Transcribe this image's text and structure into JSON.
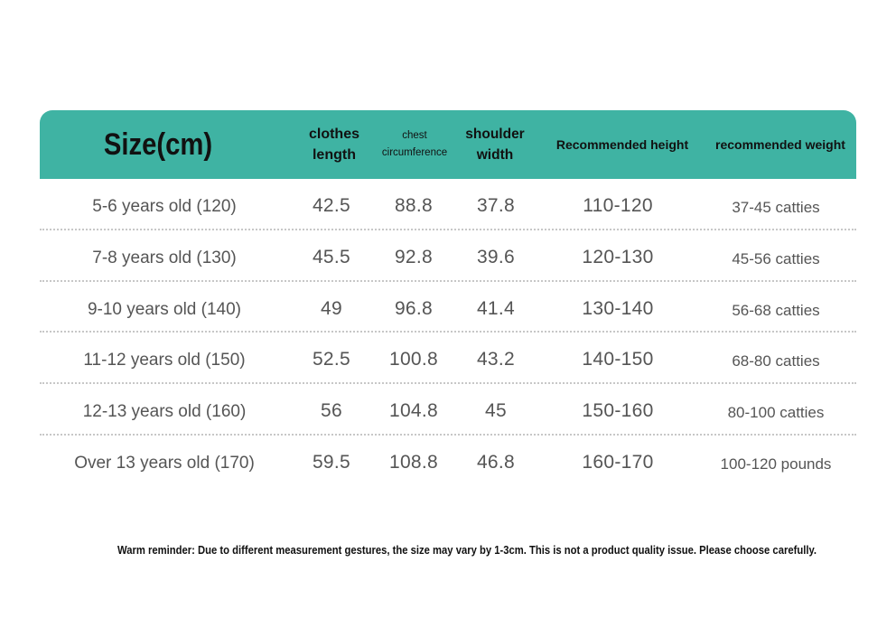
{
  "header": {
    "size_label": "Size(cm)",
    "length_label_line1": "clothes",
    "length_label_line2": "length",
    "chest_label_line1": "chest",
    "chest_label_line2": "circumference",
    "shoulder_label_line1": "shoulder",
    "shoulder_label_line2": "width",
    "height_label": "Recommended height",
    "weight_label": "recommended weight"
  },
  "rows": [
    {
      "size": "5-6 years old (120)",
      "length": "42.5",
      "chest": "88.8",
      "shoulder": "37.8",
      "height": "110-120",
      "weight": "37-45 catties"
    },
    {
      "size": "7-8 years old (130)",
      "length": "45.5",
      "chest": "92.8",
      "shoulder": "39.6",
      "height": "120-130",
      "weight": "45-56 catties"
    },
    {
      "size": "9-10 years old (140)",
      "length": "49",
      "chest": "96.8",
      "shoulder": "41.4",
      "height": "130-140",
      "weight": "56-68 catties"
    },
    {
      "size": "11-12 years old (150)",
      "length": "52.5",
      "chest": "100.8",
      "shoulder": "43.2",
      "height": "140-150",
      "weight": "68-80 catties"
    },
    {
      "size": "12-13 years old (160)",
      "length": "56",
      "chest": "104.8",
      "shoulder": "45",
      "height": "150-160",
      "weight": "80-100 catties"
    },
    {
      "size": "Over 13 years old (170)",
      "length": "59.5",
      "chest": "108.8",
      "shoulder": "46.8",
      "height": "160-170",
      "weight": "100-120 pounds"
    }
  ],
  "reminder": "Warm reminder: Due to different measurement gestures, the size may vary by 1-3cm. This is not a product quality issue. Please choose carefully.",
  "colors": {
    "header_bg": "#3fb3a3",
    "header_text": "#111111",
    "body_text": "#555555",
    "divider": "#c7c7c7"
  }
}
